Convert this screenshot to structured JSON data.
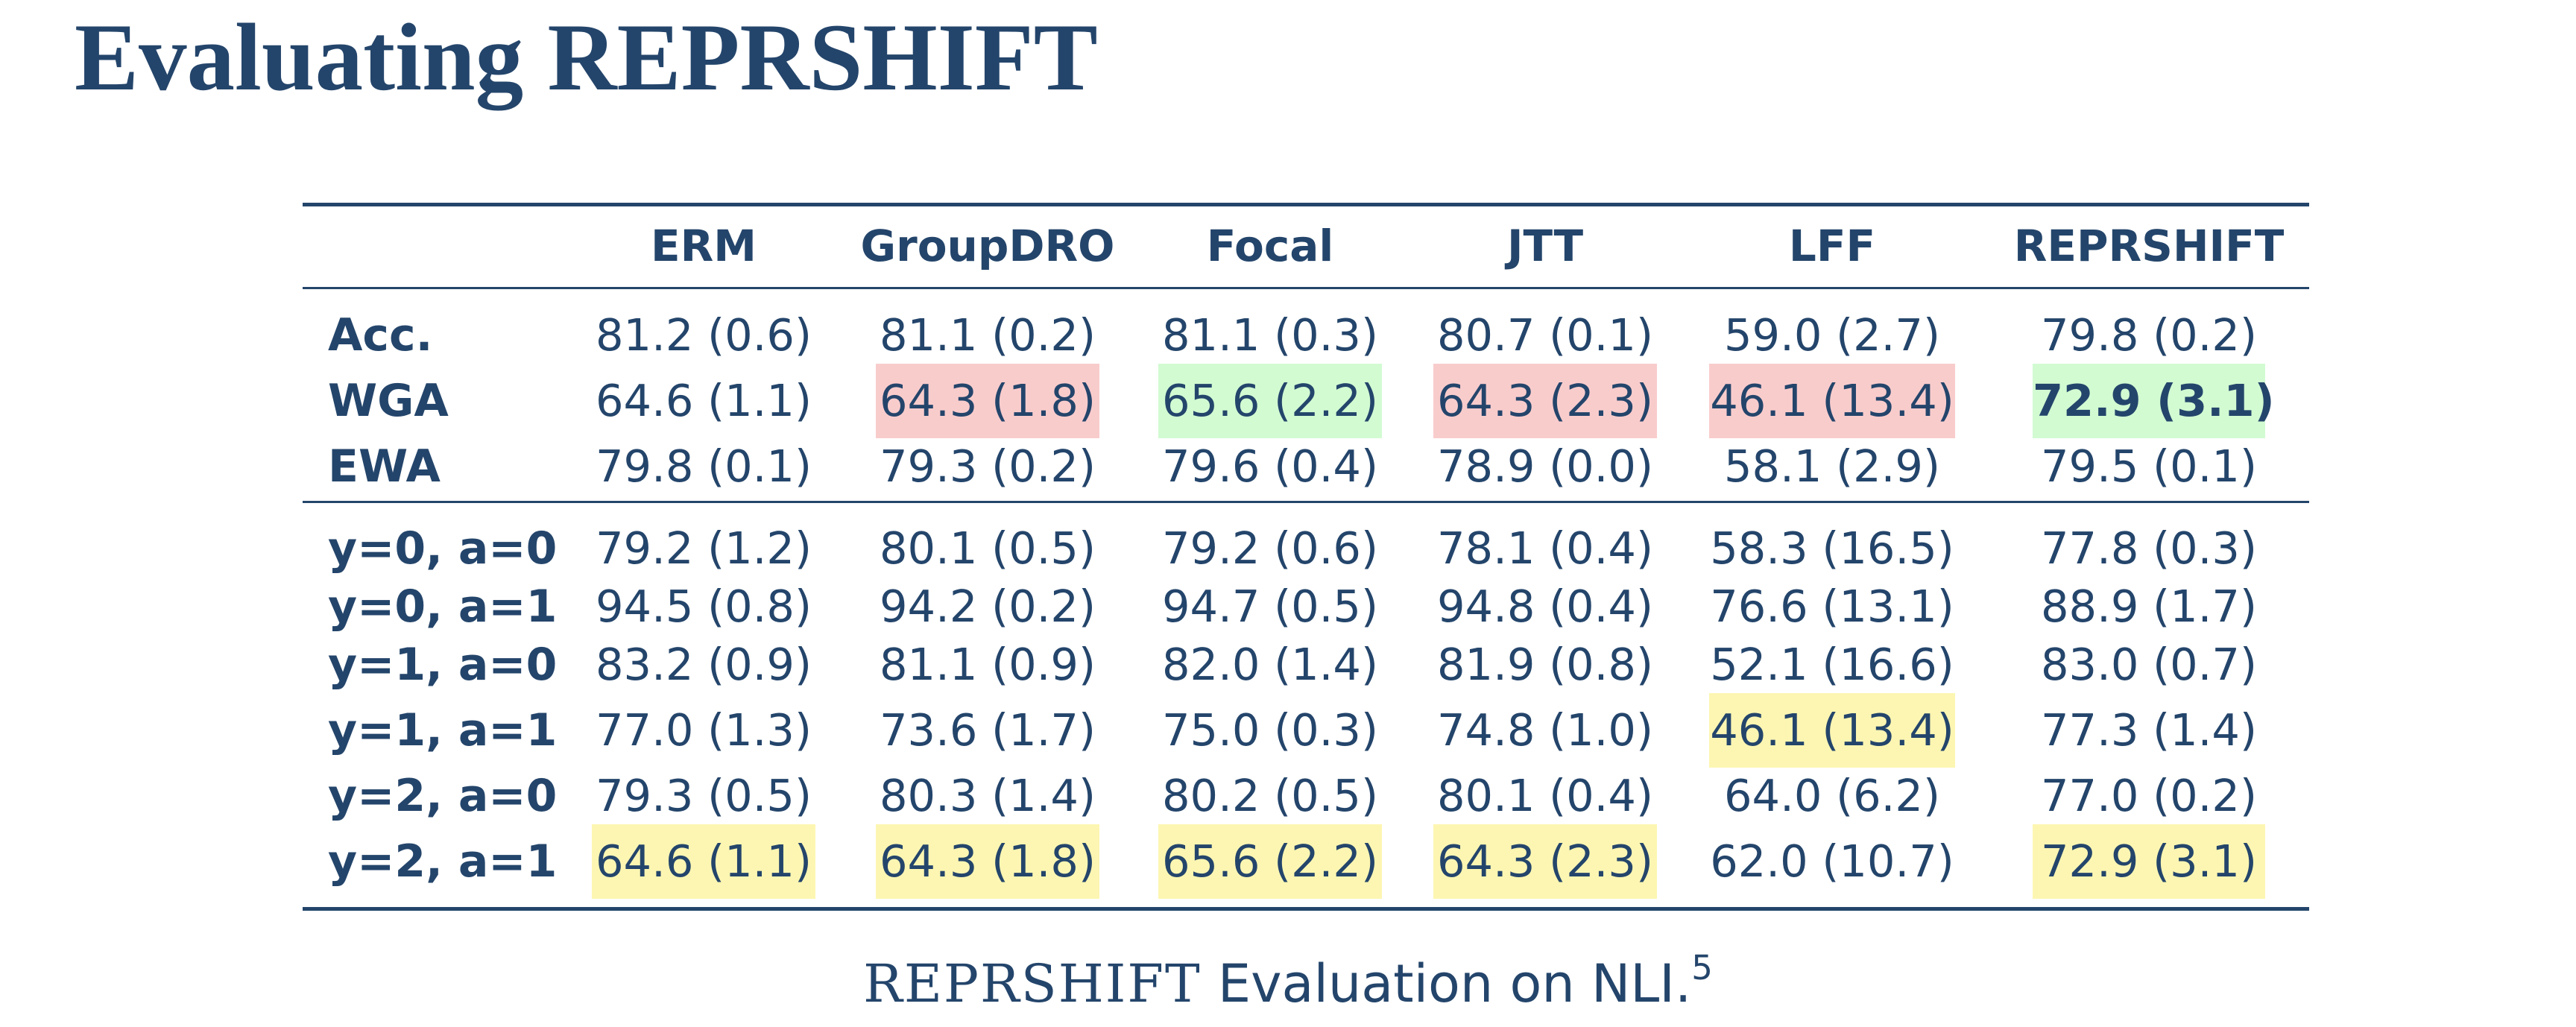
{
  "slide": {
    "title": "Evaluating REPRSHIFT"
  },
  "table": {
    "columns": [
      "ERM",
      "GroupDRO",
      "Focal",
      "JTT",
      "LFF",
      "REPRSHIFT"
    ],
    "rows": [
      {
        "label": "Acc.",
        "cells": [
          "81.2 (0.6)",
          "81.1 (0.2)",
          "81.1 (0.3)",
          "80.7 (0.1)",
          "59.0 (2.7)",
          "79.8 (0.2)"
        ]
      },
      {
        "label": "WGA",
        "cells": [
          "64.6 (1.1)",
          "64.3 (1.8)",
          "65.6 (2.2)",
          "64.3 (2.3)",
          "46.1 (13.4)",
          "72.9 (3.1)"
        ]
      },
      {
        "label": "EWA",
        "cells": [
          "79.8 (0.1)",
          "79.3 (0.2)",
          "79.6 (0.4)",
          "78.9 (0.0)",
          "58.1 (2.9)",
          "79.5 (0.1)"
        ]
      },
      {
        "label": "y=0, a=0",
        "cells": [
          "79.2 (1.2)",
          "80.1 (0.5)",
          "79.2 (0.6)",
          "78.1 (0.4)",
          "58.3 (16.5)",
          "77.8 (0.3)"
        ]
      },
      {
        "label": "y=0, a=1",
        "cells": [
          "94.5 (0.8)",
          "94.2 (0.2)",
          "94.7 (0.5)",
          "94.8 (0.4)",
          "76.6 (13.1)",
          "88.9 (1.7)"
        ]
      },
      {
        "label": "y=1, a=0",
        "cells": [
          "83.2 (0.9)",
          "81.1 (0.9)",
          "82.0 (1.4)",
          "81.9 (0.8)",
          "52.1 (16.6)",
          "83.0 (0.7)"
        ]
      },
      {
        "label": "y=1, a=1",
        "cells": [
          "77.0 (1.3)",
          "73.6 (1.7)",
          "75.0 (0.3)",
          "74.8 (1.0)",
          "46.1 (13.4)",
          "77.3 (1.4)"
        ]
      },
      {
        "label": "y=2, a=0",
        "cells": [
          "79.3 (0.5)",
          "80.3 (1.4)",
          "80.2 (0.5)",
          "80.1 (0.4)",
          "64.0 (6.2)",
          "77.0 (0.2)"
        ]
      },
      {
        "label": "y=2, a=1",
        "cells": [
          "64.6 (1.1)",
          "64.3 (1.8)",
          "65.6 (2.2)",
          "64.3 (2.3)",
          "62.0 (10.7)",
          "72.9 (3.1)"
        ]
      }
    ],
    "highlight_colors": {
      "red": "#f9cccc",
      "green": "#d2fbd2",
      "yellow": "#fdf6b2"
    },
    "highlights": [
      {
        "row": 1,
        "col": 1,
        "color": "red"
      },
      {
        "row": 1,
        "col": 2,
        "color": "green"
      },
      {
        "row": 1,
        "col": 3,
        "color": "red"
      },
      {
        "row": 1,
        "col": 4,
        "color": "red"
      },
      {
        "row": 1,
        "col": 5,
        "color": "green",
        "bold": true
      },
      {
        "row": 6,
        "col": 4,
        "color": "yellow"
      },
      {
        "row": 8,
        "col": 0,
        "color": "yellow"
      },
      {
        "row": 8,
        "col": 1,
        "color": "yellow"
      },
      {
        "row": 8,
        "col": 2,
        "color": "yellow"
      },
      {
        "row": 8,
        "col": 3,
        "color": "yellow"
      },
      {
        "row": 8,
        "col": 5,
        "color": "yellow"
      }
    ]
  },
  "caption": {
    "method_name": "REPRSHIFT",
    "text": " Evaluation on NLI.",
    "footnote_mark": "5"
  }
}
